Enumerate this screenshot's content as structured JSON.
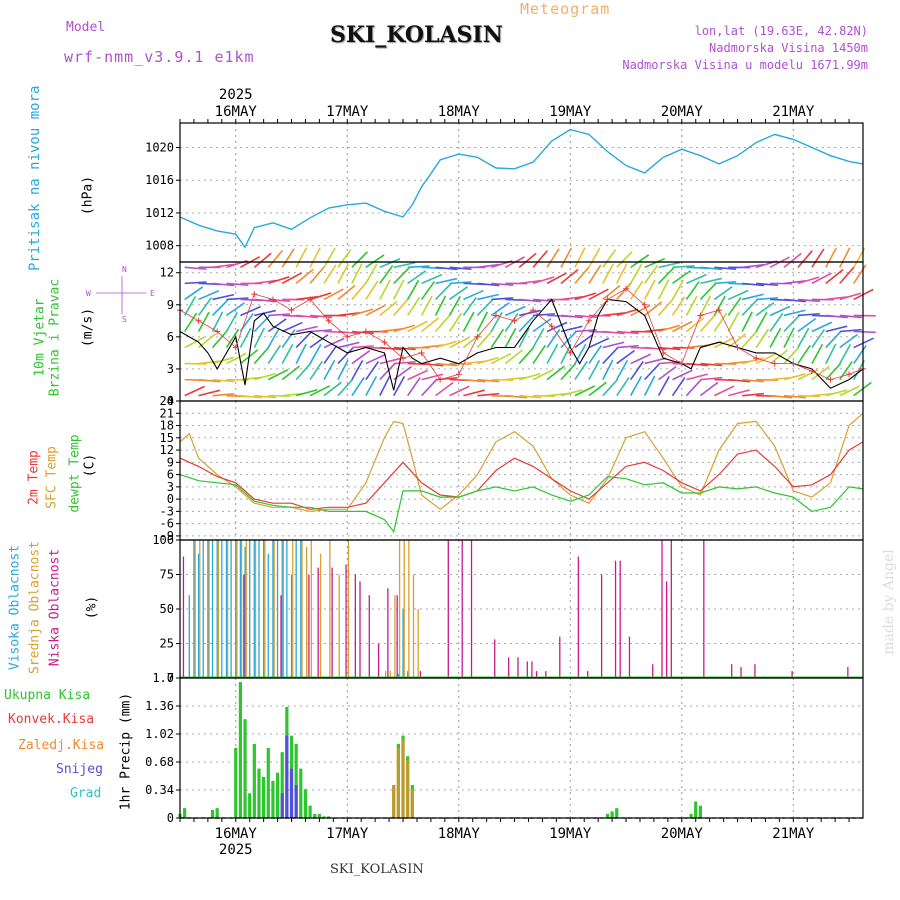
{
  "header": {
    "model_label": "Model",
    "model_name": "wrf-nmm_v3.9.1 e1km",
    "product": "Meteogram",
    "station": "SKI_KOLASIN",
    "lonlat": "lon,lat (19.63E, 42.82N)",
    "elevation": "Nadmorska Visina 1450m",
    "model_elevation": "Nadmorska Visina u modelu 1671.99m",
    "credit": "made by Angel",
    "footer_station": "SKI_KOLASIN"
  },
  "colors": {
    "pressure": "#29a8e0",
    "wind_speed": "#000000",
    "gust": "#e83a3a",
    "t2m": "#e83a3a",
    "sfc_temp": "#d9a030",
    "dewpt": "#2ec52e",
    "high_cloud": "#29a8e0",
    "mid_cloud": "#d9a030",
    "low_cloud": "#c81a8e",
    "total_precip": "#2ec52e",
    "conv_precip": "#e83a3a",
    "frozen_precip": "#f08a30",
    "snow": "#5050d8",
    "graupel": "#30c0c0",
    "model_label": "#b050d0",
    "meta_text": "#b050d0"
  },
  "time_axis": {
    "year": "2025",
    "day_labels": [
      "16MAY",
      "17MAY",
      "18MAY",
      "19MAY",
      "20MAY",
      "21MAY"
    ],
    "day_hours": [
      12,
      36,
      60,
      84,
      108,
      132
    ],
    "hours_span": [
      0,
      147
    ]
  },
  "chart_data": [
    {
      "type": "line",
      "id": "pressure",
      "ylabel_name": "Pritisak na nivou mora",
      "ylabel_unit": "(hPa)",
      "ylim": [
        1006,
        1023
      ],
      "yticks": [
        1008,
        1012,
        1016,
        1020
      ],
      "series": [
        {
          "name": "Pritisak na nivou mora",
          "x": [
            0,
            4,
            8,
            12,
            14,
            16,
            20,
            24,
            28,
            32,
            36,
            40,
            44,
            48,
            50,
            52,
            54,
            56,
            60,
            64,
            68,
            72,
            76,
            80,
            84,
            86,
            88,
            92,
            96,
            100,
            104,
            108,
            112,
            116,
            120,
            124,
            128,
            132,
            136,
            140,
            144,
            147
          ],
          "values": [
            1011.5,
            1010.5,
            1009.8,
            1009.4,
            1007.8,
            1010.2,
            1010.8,
            1010.0,
            1011.4,
            1012.6,
            1013.0,
            1013.2,
            1012.2,
            1011.5,
            1013.0,
            1015.2,
            1016.8,
            1018.5,
            1019.2,
            1018.8,
            1017.5,
            1017.4,
            1018.2,
            1020.8,
            1022.2,
            1021.9,
            1021.6,
            1019.5,
            1017.8,
            1016.9,
            1018.8,
            1019.8,
            1019.0,
            1018.0,
            1019.0,
            1020.6,
            1021.6,
            1021.0,
            1020.0,
            1019.0,
            1018.3,
            1018.0
          ]
        }
      ]
    },
    {
      "type": "line",
      "id": "wind",
      "ylabel_name": "10m Vjetar",
      "ylabel_name2": "Brzina i Pravac",
      "ylabel_unit": "(m/s)",
      "compass": [
        "N",
        "W",
        "E",
        "S"
      ],
      "ylim": [
        0,
        13
      ],
      "yticks": [
        0,
        3,
        6,
        9,
        12
      ],
      "series": [
        {
          "name": "10m Vjetar",
          "x": [
            0,
            4,
            6,
            8,
            10,
            12,
            14,
            16,
            18,
            20,
            24,
            28,
            32,
            36,
            40,
            44,
            46,
            48,
            50,
            52,
            56,
            60,
            64,
            68,
            72,
            76,
            80,
            84,
            86,
            88,
            90,
            92,
            96,
            100,
            104,
            108,
            110,
            112,
            116,
            120,
            124,
            128,
            132,
            136,
            140,
            144,
            147
          ],
          "values": [
            6.5,
            5.5,
            4.5,
            3.0,
            4.5,
            6.0,
            1.5,
            7.5,
            8.2,
            7.0,
            6.2,
            6.5,
            5.5,
            4.5,
            5.0,
            4.5,
            1.0,
            5.0,
            4.0,
            3.5,
            4.0,
            3.5,
            4.5,
            5.0,
            5.0,
            7.5,
            9.5,
            5.0,
            3.5,
            5.0,
            8.0,
            9.5,
            9.3,
            8.0,
            4.0,
            3.5,
            3.0,
            5.0,
            5.5,
            5.0,
            4.5,
            4.5,
            3.5,
            3.0,
            1.2,
            2.0,
            3.0
          ]
        },
        {
          "name": "Udari",
          "x": [
            0,
            4,
            8,
            12,
            16,
            20,
            24,
            28,
            32,
            36,
            40,
            44,
            48,
            52,
            56,
            60,
            64,
            68,
            72,
            76,
            80,
            84,
            88,
            92,
            96,
            100,
            104,
            108,
            112,
            116,
            120,
            124,
            128,
            132,
            136,
            140,
            144,
            147
          ],
          "values": [
            8.5,
            7.5,
            6.5,
            5.0,
            10.0,
            9.5,
            8.5,
            9.5,
            7.5,
            6.0,
            6.5,
            5.5,
            4.0,
            4.5,
            2.0,
            2.5,
            6.0,
            8.0,
            7.5,
            8.5,
            7.0,
            4.5,
            7.5,
            9.5,
            10.5,
            9.0,
            4.5,
            3.5,
            8.0,
            8.5,
            5.0,
            4.0,
            3.5,
            3.5,
            2.8,
            2.0,
            2.5,
            3.0
          ]
        }
      ]
    },
    {
      "type": "line",
      "id": "temperature",
      "ylabel_name": "2m Temp",
      "ylabel_name2": "SFC Temp",
      "ylabel_name3": "dewpt Temp",
      "ylabel_unit": "(C)",
      "ylim": [
        -10,
        24
      ],
      "yticks": [
        -9,
        -6,
        -3,
        0,
        3,
        6,
        9,
        12,
        15,
        18,
        21,
        24
      ],
      "series": [
        {
          "name": "2m Temp",
          "x": [
            0,
            4,
            8,
            12,
            16,
            20,
            24,
            28,
            32,
            36,
            40,
            44,
            48,
            52,
            56,
            60,
            64,
            68,
            72,
            76,
            80,
            84,
            88,
            92,
            96,
            100,
            104,
            108,
            112,
            116,
            120,
            124,
            128,
            132,
            136,
            140,
            144,
            147
          ],
          "values": [
            10,
            8,
            5.5,
            4,
            0,
            -1,
            -1,
            -2.5,
            -2,
            -2,
            -1,
            4,
            9,
            4,
            1,
            0.5,
            2,
            7,
            10,
            8,
            5,
            2,
            0,
            4,
            8,
            9,
            7,
            4,
            2,
            6,
            11,
            12,
            8,
            3,
            3.5,
            6,
            12,
            14
          ]
        },
        {
          "name": "SFC Temp",
          "x": [
            0,
            2,
            4,
            8,
            12,
            16,
            20,
            24,
            28,
            32,
            36,
            40,
            44,
            46,
            48,
            50,
            52,
            56,
            60,
            64,
            68,
            72,
            76,
            80,
            84,
            88,
            92,
            96,
            100,
            104,
            108,
            112,
            116,
            120,
            124,
            128,
            132,
            136,
            140,
            144,
            147
          ],
          "values": [
            14,
            16,
            10,
            6,
            3,
            -1,
            -2,
            -2,
            -3,
            -2.5,
            -2.5,
            4,
            15,
            19,
            18.5,
            10,
            1,
            -2.5,
            1,
            6,
            14,
            16.5,
            13,
            5,
            1,
            -1,
            5,
            15,
            16.5,
            10,
            3,
            1,
            12,
            18.5,
            19,
            13,
            2,
            0.5,
            4,
            18,
            21
          ]
        },
        {
          "name": "dewpt Temp",
          "x": [
            0,
            4,
            8,
            12,
            16,
            20,
            24,
            28,
            32,
            36,
            40,
            44,
            46,
            48,
            52,
            56,
            60,
            64,
            68,
            72,
            76,
            80,
            84,
            88,
            92,
            96,
            100,
            104,
            108,
            112,
            116,
            120,
            124,
            128,
            132,
            136,
            140,
            144,
            147
          ],
          "values": [
            6,
            4.5,
            4,
            3.5,
            -0.5,
            -1.5,
            -2,
            -2,
            -3,
            -3,
            -3,
            -5,
            -8,
            2,
            2,
            0.5,
            0.5,
            2,
            3,
            2,
            3,
            1,
            -0.5,
            1,
            5.5,
            5,
            3.5,
            4,
            1.5,
            1.5,
            3,
            2.5,
            3,
            1.5,
            0.5,
            -3,
            -2,
            3,
            2.5
          ]
        }
      ]
    },
    {
      "type": "bar",
      "id": "cloud",
      "ylabel_name": "Visoka Oblacnost",
      "ylabel_name2": "Srednja Oblacnost",
      "ylabel_name3": "Niska Oblacnost",
      "ylabel_unit": "(%)",
      "ylim": [
        0,
        100
      ],
      "yticks": [
        0,
        25,
        50,
        75,
        100
      ],
      "series": [
        {
          "name": "Visoka Oblacnost",
          "x": [
            2,
            3,
            4,
            5,
            6,
            7,
            8,
            9,
            10,
            11,
            12,
            13,
            14,
            15,
            16,
            17,
            18,
            19,
            20,
            21,
            22,
            23,
            24,
            25,
            26,
            47,
            48,
            49
          ],
          "values": [
            60,
            100,
            90,
            100,
            100,
            100,
            100,
            100,
            100,
            100,
            100,
            100,
            95,
            100,
            100,
            100,
            100,
            90,
            100,
            100,
            100,
            100,
            75,
            100,
            100,
            3,
            50,
            5
          ]
        },
        {
          "name": "Srednja Oblacnost",
          "x": [
            3,
            4,
            6,
            8,
            10,
            12,
            13,
            14,
            16,
            18,
            20,
            22,
            24,
            26,
            27,
            28,
            30,
            32,
            34,
            36,
            44,
            45,
            46,
            47,
            48,
            49,
            50,
            51
          ],
          "values": [
            100,
            100,
            100,
            100,
            100,
            100,
            100,
            100,
            100,
            100,
            100,
            100,
            100,
            100,
            95,
            100,
            90,
            100,
            75,
            100,
            5,
            5,
            60,
            100,
            100,
            100,
            75,
            50
          ]
        },
        {
          "name": "Niska Oblacnost",
          "x": [
            1,
            14,
            22,
            28,
            30,
            33,
            36,
            38,
            39,
            41,
            43,
            45,
            47,
            52,
            58,
            61,
            63,
            68,
            71,
            73,
            75,
            76,
            77,
            79,
            82,
            86,
            88,
            91,
            94,
            95,
            97,
            102,
            104,
            105,
            106,
            113,
            119,
            121,
            124,
            132,
            144
          ],
          "values": [
            88,
            75,
            60,
            75,
            80,
            80,
            82,
            75,
            70,
            60,
            25,
            65,
            60,
            5,
            100,
            100,
            100,
            28,
            15,
            15,
            12,
            12,
            5,
            5,
            30,
            88,
            5,
            75,
            85,
            85,
            30,
            10,
            100,
            70,
            100,
            100,
            10,
            8,
            10,
            5,
            8
          ]
        }
      ]
    },
    {
      "type": "bar",
      "id": "precip",
      "ylabel_unit": "1hr Precip (mm)",
      "legend": [
        "Ukupna Kisa",
        "Konvek.Kisa",
        "Zaledj.Kisa",
        "Snijeg",
        "Grad"
      ],
      "ylim": [
        0,
        1.7
      ],
      "yticks": [
        0,
        0.34,
        0.68,
        1.02,
        1.36,
        1.7
      ],
      "series": [
        {
          "name": "Ukupna Kisa",
          "x": [
            0,
            1,
            7,
            8,
            12,
            13,
            14,
            15,
            16,
            17,
            18,
            19,
            20,
            21,
            22,
            23,
            24,
            25,
            26,
            27,
            28,
            29,
            30,
            31,
            32,
            46,
            47,
            48,
            49,
            50,
            92,
            93,
            94,
            110,
            111,
            112
          ],
          "values": [
            0.05,
            0.12,
            0.1,
            0.12,
            0.85,
            1.65,
            1.2,
            0.3,
            0.9,
            0.6,
            0.5,
            0.85,
            0.45,
            0.55,
            0.8,
            1.35,
            1.0,
            0.9,
            0.6,
            0.35,
            0.15,
            0.05,
            0.05,
            0.02,
            0.02,
            0.4,
            0.9,
            1.0,
            0.75,
            0.4,
            0.05,
            0.08,
            0.12,
            0.05,
            0.2,
            0.15
          ]
        },
        {
          "name": "Snijeg",
          "x": [
            22,
            23,
            24,
            25
          ],
          "values": [
            0.3,
            1.0,
            0.6,
            0.4
          ]
        },
        {
          "name": "Zaledj.Kisa",
          "x": [
            46,
            47,
            48,
            49,
            50
          ],
          "values": [
            0.4,
            0.85,
            0.95,
            0.7,
            0.35
          ]
        }
      ]
    }
  ]
}
